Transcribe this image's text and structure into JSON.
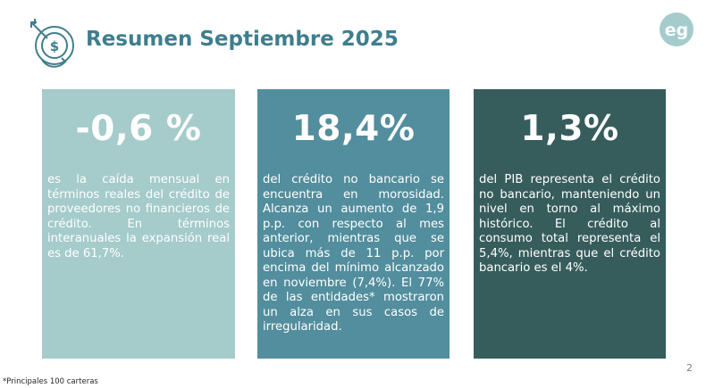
{
  "header": {
    "title": "Resumen Septiembre 2025",
    "icon": "target-money-icon",
    "logo_text": "eg"
  },
  "cards": [
    {
      "value": "-0,6 %",
      "text": "es la caída mensual en términos reales del crédito de proveedores no financieros de crédito. En términos interanuales la expansión real es de 61,7%.",
      "color": "#a5cbcb"
    },
    {
      "value": "18,4%",
      "text": "del crédito no bancario se encuentra en morosidad. Alcanza un aumento de 1,9 p.p. con respecto al mes anterior, mientras que se ubica más de 11 p.p. por encima del mínimo alcanzado en noviembre (7,4%). El 77% de las entidades* mostraron un alza en sus casos de irregularidad.",
      "color": "#528e9d"
    },
    {
      "value": "1,3%",
      "text": "del PIB representa el crédito no bancario, manteniendo un nivel en torno al máximo histórico. El crédito al consumo total representa el 5,4%, mientras que el crédito bancario es el 4%.",
      "color": "#365d5c"
    }
  ],
  "footer": {
    "page_number": "2",
    "footnote": "*Principales 100 carteras"
  },
  "colors": {
    "title": "#3f7e8e",
    "logo": "#a5cbcb"
  }
}
